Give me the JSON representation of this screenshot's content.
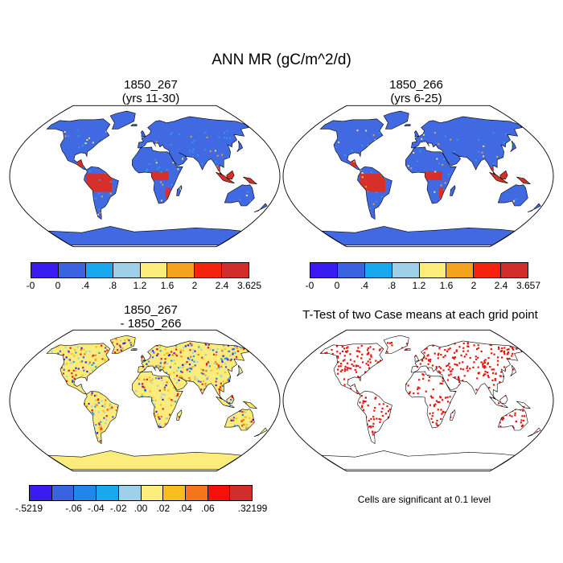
{
  "title": "ANN MR (gC/m^2/d)",
  "panels": [
    {
      "id": "case1",
      "title_line1": "1850_267",
      "title_line2": "(yrs 11-30)",
      "style": "field"
    },
    {
      "id": "case2",
      "title_line1": "1850_266",
      "title_line2": "(yrs 6-25)",
      "style": "field"
    },
    {
      "id": "diff",
      "title_line1": "1850_267",
      "title_line2": "- 1850_266",
      "style": "diff"
    },
    {
      "id": "ttest",
      "title_line1": "T-Test of two Case means at each grid point",
      "title_line2": "",
      "style": "ttest"
    }
  ],
  "colorbars": {
    "case1": {
      "labels": [
        "-0",
        "0",
        ".4",
        ".8",
        "1.2",
        "1.6",
        "2",
        "2.4",
        "3.625"
      ],
      "colors": [
        "#3a1cf2",
        "#3b62e0",
        "#19a8f0",
        "#9ed0ea",
        "#fbec7c",
        "#f4a31c",
        "#f5230d",
        "#d22d2d"
      ]
    },
    "case2": {
      "labels": [
        "-0",
        "0",
        ".4",
        ".8",
        "1.2",
        "1.6",
        "2",
        "2.4",
        "3.657"
      ],
      "colors": [
        "#3a1cf2",
        "#3b62e0",
        "#19a8f0",
        "#9ed0ea",
        "#fbec7c",
        "#f4a31c",
        "#f5230d",
        "#d22d2d"
      ]
    },
    "diff": {
      "labels": [
        "-.5219",
        "-.06",
        "-.04",
        "-.02",
        ".00",
        ".02",
        ".04",
        ".06",
        ".32199"
      ],
      "label_positions": [
        0,
        2,
        3,
        4,
        5,
        6,
        7,
        8,
        10
      ],
      "colors": [
        "#3a1cf2",
        "#3b62e0",
        "#1f86ea",
        "#19a8f0",
        "#9ed0ea",
        "#fbec7c",
        "#f8bf1c",
        "#f5751c",
        "#f5100a",
        "#d22d2d"
      ]
    }
  },
  "colors": {
    "field_base": "#4169e1",
    "field_hot": "#d7302a",
    "field_warm": "#f2a13a",
    "diff_base": "#fbec7c",
    "significant": "#e8130b"
  },
  "footnote": "Cells are significant at 0.1 level"
}
